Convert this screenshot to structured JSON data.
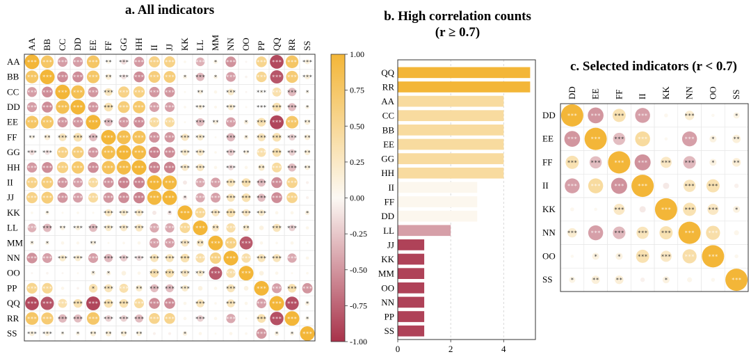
{
  "panel_a": {
    "title": "a. All indicators",
    "labels": [
      "AA",
      "BB",
      "CC",
      "DD",
      "EE",
      "FF",
      "GG",
      "HH",
      "II",
      "JJ",
      "KK",
      "LL",
      "MM",
      "NN",
      "OO",
      "PP",
      "QQ",
      "RR",
      "SS"
    ],
    "colorbar_ticks": [
      "1.00",
      "0.75",
      "0.50",
      "0.25",
      "0.00",
      "-0.25",
      "-0.50",
      "-0.75",
      "-1.00"
    ]
  },
  "panel_b": {
    "title_line1": "b. High correlation counts",
    "title_line2": "(r ≥ 0.7)",
    "x_ticks": [
      "0",
      "2",
      "4"
    ]
  },
  "panel_c": {
    "title": "c. Selected indicators (r < 0.7)",
    "labels": [
      "DD",
      "EE",
      "FF",
      "II",
      "KK",
      "NN",
      "OO",
      "SS"
    ]
  },
  "chart_data": [
    {
      "type": "heatmap",
      "id": "a",
      "title": "a. All indicators",
      "labels": [
        "AA",
        "BB",
        "CC",
        "DD",
        "EE",
        "FF",
        "GG",
        "HH",
        "II",
        "JJ",
        "KK",
        "LL",
        "MM",
        "NN",
        "OO",
        "PP",
        "QQ",
        "RR",
        "SS"
      ],
      "matrix": [
        [
          1,
          0.76,
          -0.46,
          -0.46,
          0.76,
          0.08,
          -0.14,
          -0.48,
          0.58,
          0.58,
          0.03,
          -0.36,
          0.08,
          -0.52,
          -0.02,
          0.54,
          -0.88,
          0.76,
          0.12
        ],
        [
          0.76,
          1,
          -0.55,
          -0.55,
          0.75,
          0.16,
          -0.12,
          -0.55,
          0.65,
          0.65,
          0.08,
          -0.32,
          0.08,
          -0.45,
          -0.03,
          0.52,
          -0.82,
          0.68,
          0.12
        ],
        [
          -0.46,
          -0.55,
          1,
          0.85,
          -0.5,
          0.28,
          0.58,
          0.6,
          -0.5,
          -0.5,
          0.02,
          0.1,
          0.05,
          0.2,
          -0.02,
          0.05,
          0.38,
          -0.32,
          0.06
        ],
        [
          -0.46,
          -0.55,
          0.85,
          1,
          -0.5,
          0.35,
          0.65,
          0.72,
          -0.45,
          -0.45,
          0.03,
          0.12,
          0.04,
          0.18,
          0.02,
          -0.03,
          0.35,
          -0.3,
          0.08
        ],
        [
          0.76,
          0.75,
          -0.5,
          -0.5,
          1,
          -0.3,
          -0.5,
          -0.55,
          0.45,
          0.45,
          0.02,
          -0.3,
          0.1,
          -0.45,
          0.1,
          0.35,
          -0.9,
          0.74,
          0.14
        ],
        [
          0.08,
          0.16,
          0.28,
          0.35,
          -0.3,
          1,
          0.88,
          0.82,
          -0.52,
          -0.5,
          0.25,
          0.2,
          0.02,
          -0.32,
          0.1,
          0.3,
          0.35,
          -0.2,
          0.15
        ],
        [
          -0.14,
          -0.12,
          0.58,
          0.65,
          -0.5,
          0.88,
          1,
          0.92,
          -0.6,
          -0.55,
          0.2,
          0.22,
          0.03,
          -0.22,
          0.1,
          0.38,
          0.35,
          -0.2,
          0.15
        ],
        [
          -0.48,
          -0.55,
          0.6,
          0.72,
          -0.55,
          0.82,
          0.92,
          1,
          -0.6,
          -0.6,
          0.22,
          0.25,
          0.05,
          -0.15,
          0.05,
          0.2,
          0.45,
          -0.3,
          0.12
        ],
        [
          0.58,
          0.65,
          -0.5,
          -0.45,
          0.45,
          -0.52,
          -0.6,
          -0.6,
          1,
          0.95,
          -0.08,
          -0.4,
          -0.45,
          0.3,
          0.35,
          -0.3,
          -0.55,
          0.55,
          -0.04
        ],
        [
          0.58,
          0.65,
          -0.5,
          -0.45,
          0.45,
          -0.5,
          -0.55,
          -0.6,
          0.95,
          1,
          -0.1,
          -0.4,
          -0.45,
          0.3,
          0.35,
          -0.3,
          -0.55,
          0.55,
          -0.04
        ],
        [
          0.03,
          0.08,
          0.02,
          0.03,
          0.02,
          0.25,
          0.2,
          0.22,
          -0.08,
          -0.1,
          1,
          0.5,
          0.25,
          0.35,
          0.25,
          0.2,
          0.05,
          0.05,
          0.1
        ],
        [
          -0.36,
          -0.32,
          0.1,
          0.12,
          -0.3,
          0.2,
          0.22,
          0.25,
          -0.4,
          -0.4,
          0.5,
          1,
          0.25,
          0.4,
          0.2,
          0.1,
          0.3,
          -0.2,
          0.05
        ],
        [
          0.08,
          0.08,
          0.05,
          0.04,
          0.1,
          0.02,
          0.03,
          0.05,
          -0.45,
          -0.45,
          0.25,
          0.25,
          1,
          0.6,
          -0.8,
          0.05,
          0.03,
          0.05,
          0.02
        ],
        [
          -0.52,
          -0.45,
          0.2,
          0.18,
          -0.45,
          -0.32,
          -0.22,
          -0.15,
          0.3,
          0.3,
          0.35,
          0.4,
          0.6,
          1,
          0.4,
          0.3,
          0.3,
          -0.4,
          0.05
        ],
        [
          -0.02,
          -0.03,
          -0.02,
          0.02,
          0.1,
          0.1,
          0.1,
          0.05,
          0.35,
          0.35,
          0.25,
          0.2,
          -0.8,
          0.4,
          1,
          0.1,
          0.05,
          0.02,
          0.03
        ],
        [
          0.54,
          0.52,
          0.05,
          -0.03,
          0.35,
          0.3,
          0.38,
          0.2,
          -0.3,
          -0.3,
          0.2,
          0.1,
          0.05,
          0.3,
          0.1,
          1,
          -0.45,
          0.35,
          -0.5
        ],
        [
          -0.88,
          -0.82,
          0.38,
          0.35,
          -0.9,
          0.35,
          0.35,
          0.45,
          -0.55,
          -0.55,
          0.05,
          0.3,
          0.03,
          0.3,
          0.05,
          -0.45,
          1,
          -0.85,
          0.1
        ],
        [
          0.76,
          0.68,
          -0.32,
          -0.3,
          0.74,
          -0.2,
          -0.2,
          -0.3,
          0.55,
          0.55,
          0.05,
          -0.2,
          0.05,
          -0.4,
          0.02,
          0.35,
          -0.85,
          1,
          0.08
        ],
        [
          0.12,
          0.12,
          0.06,
          0.08,
          0.14,
          0.15,
          0.15,
          0.12,
          -0.04,
          -0.04,
          0.1,
          0.05,
          0.02,
          0.05,
          0.03,
          -0.5,
          0.1,
          0.08,
          1
        ]
      ],
      "significance": [
        [
          "***",
          "***",
          "***",
          "***",
          "***",
          "**",
          "***",
          "***",
          "***",
          "***",
          "",
          "***",
          "*",
          "***",
          "",
          "***",
          "***",
          "***",
          "***"
        ],
        [
          "***",
          "***",
          "***",
          "***",
          "***",
          "**",
          "***",
          "***",
          "***",
          "***",
          "*",
          "***",
          "*",
          "***",
          "",
          "***",
          "***",
          "***",
          "***"
        ],
        [
          "***",
          "***",
          "***",
          "***",
          "***",
          "***",
          "***",
          "***",
          "***",
          "***",
          "",
          "**",
          "",
          "***",
          "",
          "***",
          "***",
          "***",
          "*"
        ],
        [
          "***",
          "***",
          "***",
          "***",
          "***",
          "***",
          "***",
          "***",
          "***",
          "***",
          "",
          "***",
          "",
          "***",
          "",
          "***",
          "***",
          "***",
          "*"
        ],
        [
          "***",
          "***",
          "***",
          "***",
          "***",
          "***",
          "***",
          "***",
          "***",
          "***",
          "",
          "***",
          "**",
          "***",
          "*",
          "***",
          "***",
          "***",
          "**"
        ],
        [
          "**",
          "**",
          "***",
          "***",
          "***",
          "***",
          "***",
          "***",
          "***",
          "***",
          "***",
          "***",
          "",
          "***",
          "*",
          "***",
          "***",
          "***",
          "**"
        ],
        [
          "***",
          "***",
          "***",
          "***",
          "***",
          "***",
          "***",
          "***",
          "***",
          "***",
          "***",
          "***",
          "",
          "***",
          "**",
          "***",
          "***",
          "***",
          "**"
        ],
        [
          "***",
          "***",
          "***",
          "***",
          "***",
          "***",
          "***",
          "***",
          "***",
          "***",
          "***",
          "***",
          "",
          "***",
          "",
          "**",
          "***",
          "***",
          "**"
        ],
        [
          "***",
          "***",
          "***",
          "***",
          "***",
          "***",
          "***",
          "***",
          "***",
          "***",
          "",
          "***",
          "***",
          "***",
          "***",
          "***",
          "***",
          "***",
          ""
        ],
        [
          "***",
          "***",
          "***",
          "***",
          "***",
          "***",
          "***",
          "***",
          "***",
          "***",
          "*",
          "***",
          "***",
          "***",
          "***",
          "***",
          "***",
          "***",
          ""
        ],
        [
          "",
          "*",
          "",
          "",
          "",
          "***",
          "***",
          "***",
          "",
          "*",
          "***",
          "***",
          "***",
          "***",
          "***",
          "***",
          "",
          "",
          "*"
        ],
        [
          "***",
          "***",
          "**",
          "***",
          "***",
          "***",
          "***",
          "***",
          "***",
          "***",
          "***",
          "***",
          "**",
          "***",
          "**",
          "",
          "***",
          "***",
          ""
        ],
        [
          "*",
          "*",
          "",
          "",
          "**",
          "",
          "",
          "",
          "***",
          "***",
          "***",
          "**",
          "***",
          "***",
          "***",
          "",
          "",
          "",
          ""
        ],
        [
          "***",
          "***",
          "***",
          "***",
          "***",
          "***",
          "***",
          "***",
          "***",
          "***",
          "***",
          "***",
          "***",
          "***",
          "***",
          "***",
          "***",
          "***",
          ""
        ],
        [
          "",
          "",
          "",
          "",
          "*",
          "*",
          "",
          "",
          "***",
          "***",
          "***",
          "***",
          "***",
          "***",
          "***",
          "",
          "",
          "",
          ""
        ],
        [
          "***",
          "***",
          "",
          "",
          "*",
          "***",
          "***",
          "**",
          "***",
          "***",
          "***",
          "",
          "",
          "***",
          "",
          "***",
          "***",
          "***",
          "***"
        ],
        [
          "***",
          "***",
          "***",
          "***",
          "***",
          "***",
          "***",
          "***",
          "***",
          "***",
          "",
          "***",
          "",
          "***",
          "",
          "***",
          "***",
          "***",
          "*"
        ],
        [
          "***",
          "***",
          "***",
          "***",
          "***",
          "***",
          "***",
          "***",
          "***",
          "***",
          "",
          "***",
          "",
          "***",
          "",
          "***",
          "***",
          "***",
          "*"
        ],
        [
          "***",
          "***",
          "*",
          "*",
          "**",
          "**",
          "**",
          "**",
          "",
          "",
          "*",
          "",
          "",
          "",
          "",
          "***",
          "*",
          "*",
          "***"
        ]
      ],
      "colorbar_range": [
        -1,
        1
      ]
    },
    {
      "type": "bar",
      "orientation": "horizontal",
      "id": "b",
      "title": "b. High correlation counts (r ≥ 0.7)",
      "categories": [
        "QQ",
        "RR",
        "AA",
        "CC",
        "BB",
        "EE",
        "GG",
        "HH",
        "II",
        "FF",
        "DD",
        "LL",
        "JJ",
        "KK",
        "MM",
        "OO",
        "NN",
        "PP",
        "SS"
      ],
      "values": [
        5,
        5,
        4,
        4,
        4,
        4,
        4,
        4,
        3,
        3,
        3,
        2,
        1,
        1,
        1,
        1,
        1,
        1,
        1
      ],
      "color_scores": [
        1.0,
        1.0,
        0.45,
        0.45,
        0.45,
        0.45,
        0.45,
        0.45,
        0.03,
        0.03,
        0.03,
        -0.45,
        -0.92,
        -0.92,
        -0.92,
        -0.92,
        -0.92,
        -0.92,
        -0.92
      ],
      "xlim": [
        0,
        5.2
      ],
      "xticks": [
        0,
        2,
        4
      ],
      "grid": "x-dashed"
    },
    {
      "type": "heatmap",
      "id": "c",
      "title": "c. Selected indicators (r < 0.7)",
      "labels": [
        "DD",
        "EE",
        "FF",
        "II",
        "KK",
        "NN",
        "OO",
        "SS"
      ],
      "matrix": [
        [
          1,
          -0.5,
          0.35,
          -0.45,
          0.03,
          0.18,
          0.02,
          0.08
        ],
        [
          -0.5,
          1,
          -0.3,
          0.45,
          0.02,
          -0.45,
          0.1,
          0.14
        ],
        [
          0.35,
          -0.3,
          1,
          -0.52,
          0.25,
          -0.32,
          0.1,
          0.15
        ],
        [
          -0.45,
          0.45,
          -0.52,
          1,
          -0.08,
          0.3,
          0.35,
          -0.04
        ],
        [
          0.03,
          0.02,
          0.25,
          -0.08,
          1,
          0.35,
          0.25,
          0.1
        ],
        [
          0.18,
          -0.45,
          -0.32,
          0.3,
          0.35,
          1,
          0.4,
          0.05
        ],
        [
          0.02,
          0.1,
          0.1,
          0.35,
          0.25,
          0.4,
          1,
          0.03
        ],
        [
          0.08,
          0.14,
          0.15,
          -0.04,
          0.1,
          0.05,
          0.03,
          1
        ]
      ],
      "significance": [
        [
          "***",
          "***",
          "***",
          "***",
          "",
          "***",
          "",
          "*"
        ],
        [
          "***",
          "***",
          "***",
          "***",
          "",
          "***",
          "*",
          "**"
        ],
        [
          "***",
          "***",
          "***",
          "***",
          "***",
          "***",
          "*",
          "**"
        ],
        [
          "***",
          "***",
          "***",
          "***",
          "",
          "***",
          "***",
          ""
        ],
        [
          "",
          "",
          "***",
          "",
          "***",
          "***",
          "***",
          "*"
        ],
        [
          "***",
          "***",
          "***",
          "***",
          "***",
          "***",
          "***",
          ""
        ],
        [
          "",
          "*",
          "*",
          "***",
          "***",
          "***",
          "***",
          ""
        ],
        [
          "*",
          "**",
          "**",
          "",
          "*",
          "",
          "",
          "***"
        ]
      ]
    }
  ]
}
